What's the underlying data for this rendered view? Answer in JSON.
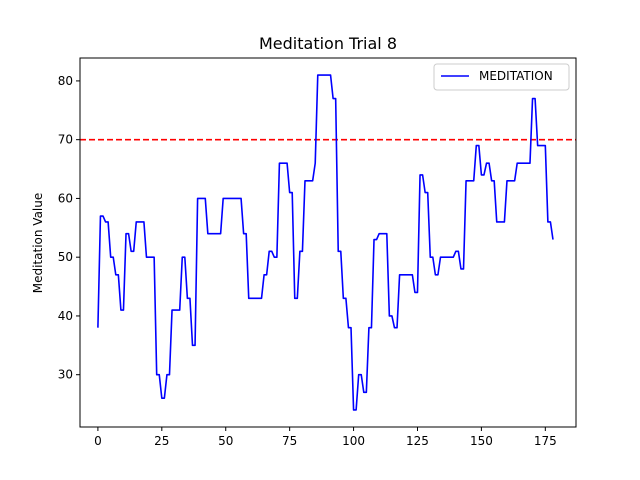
{
  "chart_data": {
    "type": "line",
    "title": "Meditation Trial 8",
    "xlabel": "",
    "ylabel": "Meditation Value",
    "xlim": [
      -7,
      187
    ],
    "ylim": [
      21.1,
      83.9
    ],
    "xticks": [
      0,
      25,
      50,
      75,
      100,
      125,
      150,
      175
    ],
    "yticks": [
      30,
      40,
      50,
      60,
      70,
      80
    ],
    "threshold": {
      "value": 70,
      "color": "#ff0000",
      "style": "dashed"
    },
    "legend": {
      "position": "top-right"
    },
    "series": [
      {
        "name": "MEDITATION",
        "color": "#0000ff",
        "x": [
          0,
          1,
          2,
          3,
          4,
          5,
          6,
          7,
          8,
          9,
          10,
          11,
          12,
          13,
          14,
          15,
          16,
          17,
          18,
          19,
          20,
          21,
          22,
          23,
          24,
          25,
          26,
          27,
          28,
          29,
          30,
          31,
          32,
          33,
          34,
          35,
          36,
          37,
          38,
          39,
          40,
          41,
          42,
          43,
          44,
          45,
          46,
          47,
          48,
          49,
          50,
          51,
          52,
          53,
          54,
          55,
          56,
          57,
          58,
          59,
          60,
          61,
          62,
          63,
          64,
          65,
          66,
          67,
          68,
          69,
          70,
          71,
          72,
          73,
          74,
          75,
          76,
          77,
          78,
          79,
          80,
          81,
          82,
          83,
          84,
          85,
          86,
          87,
          88,
          89,
          90,
          91,
          92,
          93,
          94,
          95,
          96,
          97,
          98,
          99,
          100,
          101,
          102,
          103,
          104,
          105,
          106,
          107,
          108,
          109,
          110,
          111,
          112,
          113,
          114,
          115,
          116,
          117,
          118,
          119,
          120,
          121,
          122,
          123,
          124,
          125,
          126,
          127,
          128,
          129,
          130,
          131,
          132,
          133,
          134,
          135,
          136,
          137,
          138,
          139,
          140,
          141,
          142,
          143,
          144,
          145,
          146,
          147,
          148,
          149,
          150,
          151,
          152,
          153,
          154,
          155,
          156,
          157,
          158,
          159,
          160,
          161,
          162,
          163,
          164,
          165,
          166,
          167,
          168,
          169,
          170,
          171,
          172,
          173,
          174,
          175,
          176,
          177,
          178
        ],
        "values": [
          38,
          57,
          57,
          56,
          56,
          50,
          50,
          47,
          47,
          41,
          41,
          54,
          54,
          51,
          51,
          56,
          56,
          56,
          56,
          50,
          50,
          50,
          50,
          30,
          30,
          26,
          26,
          30,
          30,
          41,
          41,
          41,
          41,
          50,
          50,
          43,
          43,
          35,
          35,
          60,
          60,
          60,
          60,
          54,
          54,
          54,
          54,
          54,
          54,
          60,
          60,
          60,
          60,
          60,
          60,
          60,
          60,
          54,
          54,
          43,
          43,
          43,
          43,
          43,
          43,
          47,
          47,
          51,
          51,
          50,
          50,
          66,
          66,
          66,
          66,
          61,
          61,
          43,
          43,
          51,
          51,
          63,
          63,
          63,
          63,
          66,
          81,
          81,
          81,
          81,
          81,
          81,
          77,
          77,
          51,
          51,
          43,
          43,
          38,
          38,
          24,
          24,
          30,
          30,
          27,
          27,
          38,
          38,
          53,
          53,
          54,
          54,
          54,
          54,
          40,
          40,
          38,
          38,
          47,
          47,
          47,
          47,
          47,
          47,
          44,
          44,
          64,
          64,
          61,
          61,
          50,
          50,
          47,
          47,
          50,
          50,
          50,
          50,
          50,
          50,
          51,
          51,
          48,
          48,
          63,
          63,
          63,
          63,
          69,
          69,
          64,
          64,
          66,
          66,
          63,
          63,
          56,
          56,
          56,
          56,
          63,
          63,
          63,
          63,
          66,
          66,
          66,
          66,
          66,
          66,
          77,
          77,
          69,
          69,
          69,
          69,
          56,
          56,
          53
        ]
      }
    ]
  }
}
